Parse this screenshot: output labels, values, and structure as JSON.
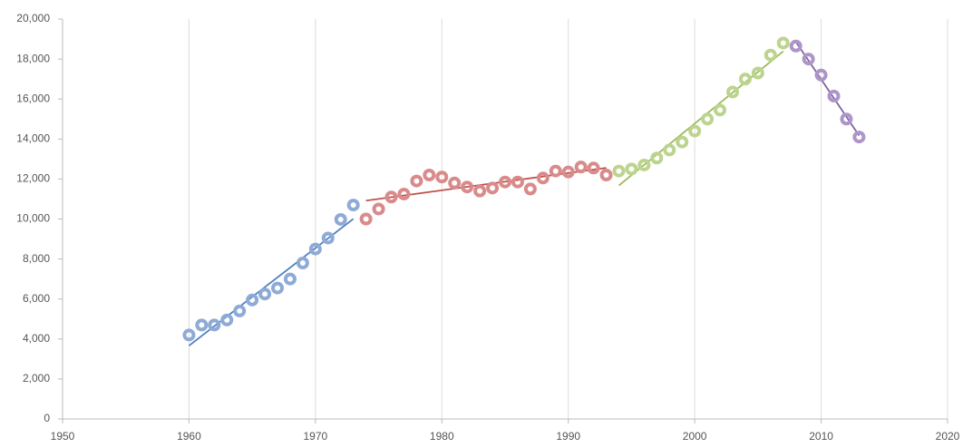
{
  "chart_data": {
    "type": "scatter",
    "xlim": [
      1950,
      2020
    ],
    "xticks": [
      1950,
      1960,
      1970,
      1980,
      1990,
      2000,
      2010,
      2020
    ],
    "ylim": [
      0,
      20000
    ],
    "yticks": [
      0,
      {
        "value": 2000,
        "label": "2,000"
      },
      {
        "value": 4000,
        "label": "4,000"
      },
      {
        "value": 6000,
        "label": "6,000"
      },
      {
        "value": 8000,
        "label": "8,000"
      },
      {
        "value": 10000,
        "label": "10,000"
      },
      {
        "value": 12000,
        "label": "12,000"
      },
      {
        "value": 14000,
        "label": "14,000"
      },
      {
        "value": 16000,
        "label": "16,000"
      },
      {
        "value": 18000,
        "label": "18,000"
      },
      {
        "value": 20000,
        "label": "20,000"
      }
    ],
    "grid": "x",
    "trendline": true,
    "series": [
      {
        "color": "#8eaad6",
        "trend_color": "#4f7fc0",
        "x": [
          1960,
          1961,
          1962,
          1963,
          1964,
          1965,
          1966,
          1967,
          1968,
          1969,
          1970,
          1971,
          1972,
          1973
        ],
        "values": [
          4200,
          4700,
          4700,
          4950,
          5400,
          5950,
          6250,
          6550,
          7000,
          7800,
          8500,
          9050,
          9980,
          10700
        ]
      },
      {
        "color": "#d98b8b",
        "trend_color": "#c0504d",
        "x": [
          1974,
          1975,
          1976,
          1977,
          1978,
          1979,
          1980,
          1981,
          1982,
          1983,
          1984,
          1985,
          1986,
          1987,
          1988,
          1989,
          1990,
          1991,
          1992,
          1993
        ],
        "values": [
          10000,
          10500,
          11100,
          11250,
          11900,
          12200,
          12100,
          11800,
          11600,
          11400,
          11550,
          11850,
          11850,
          11500,
          12050,
          12400,
          12350,
          12600,
          12550,
          12200
        ]
      },
      {
        "color": "#bcd48e",
        "trend_color": "#9bbb59",
        "x": [
          1994,
          1995,
          1996,
          1997,
          1998,
          1999,
          2000,
          2001,
          2002,
          2003,
          2004,
          2005,
          2006,
          2007
        ],
        "values": [
          12400,
          12500,
          12700,
          13050,
          13450,
          13850,
          14400,
          15000,
          15450,
          16350,
          17000,
          17300,
          18200,
          18800
        ]
      },
      {
        "color": "#ad95c9",
        "trend_color": "#8064a2",
        "x": [
          2008,
          2009,
          2010,
          2011,
          2012,
          2013
        ],
        "values": [
          18650,
          18000,
          17200,
          16150,
          15000,
          14100
        ]
      }
    ]
  }
}
